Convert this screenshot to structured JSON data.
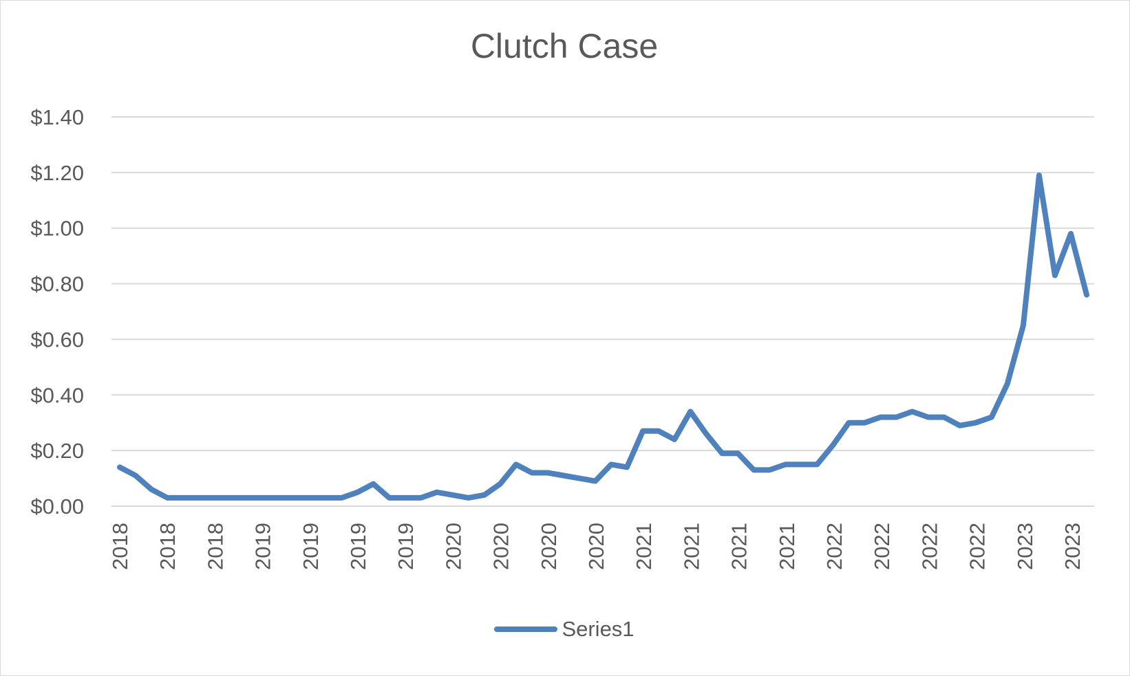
{
  "chart_data": {
    "type": "line",
    "title": "Clutch Case",
    "xlabel": "",
    "ylabel": "",
    "ylim": [
      0,
      1.4
    ],
    "y_ticks": [
      "$0.00",
      "$0.20",
      "$0.40",
      "$0.60",
      "$0.80",
      "$1.00",
      "$1.20",
      "$1.40"
    ],
    "y_tick_values": [
      0,
      0.2,
      0.4,
      0.6,
      0.8,
      1.0,
      1.2,
      1.4
    ],
    "x_tick_labels": [
      "2018",
      "2018",
      "2018",
      "2019",
      "2019",
      "2019",
      "2019",
      "2020",
      "2020",
      "2020",
      "2020",
      "2021",
      "2021",
      "2021",
      "2021",
      "2022",
      "2022",
      "2022",
      "2022",
      "2023",
      "2023"
    ],
    "grid": true,
    "legend_position": "bottom",
    "series": [
      {
        "name": "Series1",
        "color": "#4f81bd",
        "values": [
          0.14,
          0.11,
          0.06,
          0.03,
          0.03,
          0.03,
          0.03,
          0.03,
          0.03,
          0.03,
          0.03,
          0.03,
          0.03,
          0.03,
          0.03,
          0.05,
          0.08,
          0.03,
          0.03,
          0.03,
          0.05,
          0.04,
          0.03,
          0.04,
          0.08,
          0.15,
          0.12,
          0.12,
          0.11,
          0.1,
          0.09,
          0.15,
          0.14,
          0.27,
          0.27,
          0.24,
          0.34,
          0.26,
          0.19,
          0.19,
          0.13,
          0.13,
          0.15,
          0.15,
          0.15,
          0.22,
          0.3,
          0.3,
          0.32,
          0.32,
          0.34,
          0.32,
          0.32,
          0.29,
          0.3,
          0.32,
          0.44,
          0.65,
          1.19,
          0.83,
          0.98,
          0.76
        ]
      }
    ]
  },
  "colors": {
    "line": "#4f81bd",
    "grid": "#d9d9d9",
    "text": "#595959"
  }
}
